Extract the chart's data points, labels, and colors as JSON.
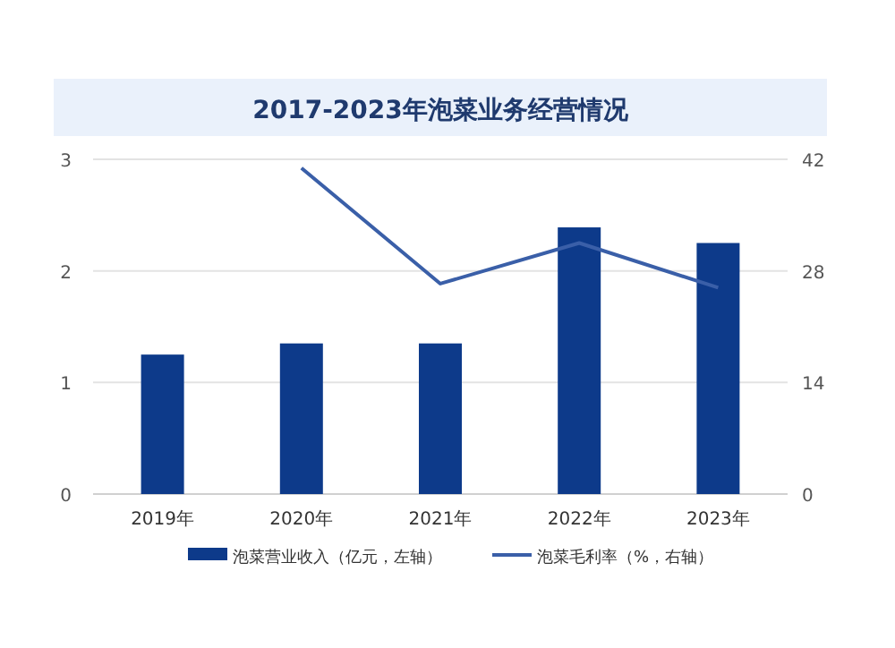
{
  "chart_data": {
    "type": "bar",
    "title": "2017-2023年泡菜业务经营情况",
    "categories": [
      "2019年",
      "2020年",
      "2021年",
      "2022年",
      "2023年"
    ],
    "series": [
      {
        "name": "泡菜营业收入（亿元，左轴）",
        "color": "#0d3a8a",
        "values": [
          1.25,
          1.35,
          1.35,
          2.39,
          2.25
        ]
      },
      {
        "name": "泡菜毛利率（%，右轴）",
        "type": "line",
        "axis": "y2",
        "color": "#3a5fa8",
        "values": [
          null,
          40.9,
          26.4,
          31.5,
          25.9
        ]
      }
    ],
    "ylim": [
      0,
      3
    ],
    "yticks": [
      0,
      1,
      2,
      3
    ],
    "y2lim": [
      0,
      42
    ],
    "y2ticks": [
      0,
      14,
      28,
      42
    ],
    "grid": "y",
    "legend": "bottom"
  }
}
